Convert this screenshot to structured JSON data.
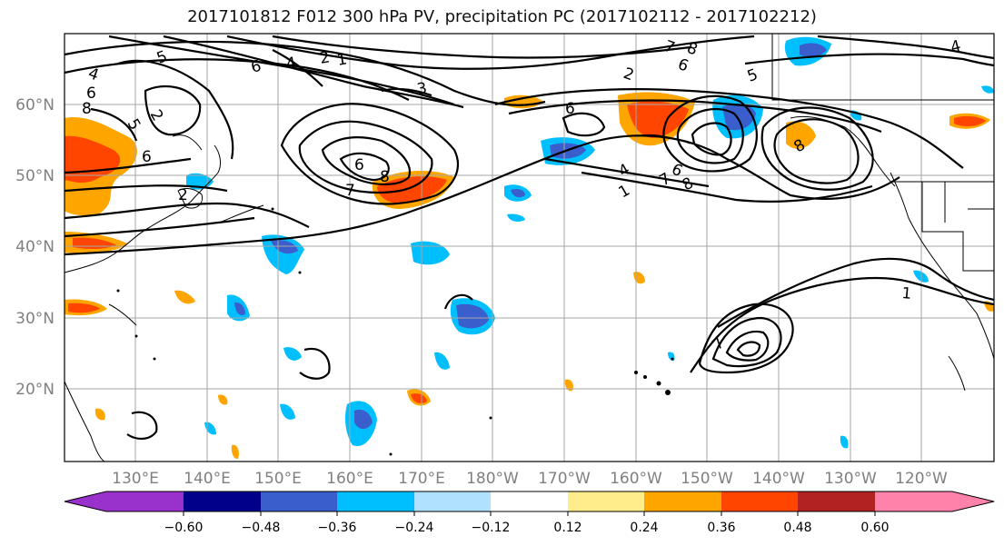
{
  "title": "2017101812 F012 300 hPa PV, precipitation PC (2017102112 - 2017102212)",
  "lat_labels": [
    "60°N",
    "50°N",
    "40°N",
    "30°N",
    "20°N"
  ],
  "lon_labels": [
    "130°E",
    "140°E",
    "150°E",
    "160°E",
    "170°E",
    "180°W",
    "170°W",
    "160°W",
    "150°W",
    "140°W",
    "130°W",
    "120°W"
  ],
  "colorbar": {
    "ticks": [
      "−0.60",
      "−0.48",
      "−0.36",
      "−0.24",
      "−0.12",
      "0.12",
      "0.24",
      "0.36",
      "0.48",
      "0.60"
    ],
    "colors": [
      "#9932CC",
      "#00008B",
      "#3A5FCD",
      "#00BFFF",
      "#B0E2FF",
      "#FFFFFF",
      "#FFEC8B",
      "#FFA500",
      "#FF4500",
      "#B22222",
      "#FF82AB"
    ]
  },
  "contour_labels": [
    "5",
    "6",
    "4",
    "2",
    "1",
    "3",
    "7",
    "8",
    "4",
    "6",
    "2",
    "4",
    "5",
    "2",
    "6",
    "8",
    "8",
    "6",
    "7",
    "5",
    "6",
    "2",
    "1",
    "7",
    "8",
    "4",
    "6",
    "7",
    "8",
    "6",
    "1"
  ]
}
